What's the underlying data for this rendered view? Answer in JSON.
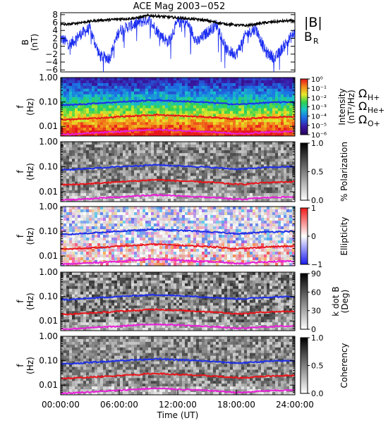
{
  "title": "ACE Mag 2003−052",
  "colors": {
    "total_field": "#000000",
    "radial_field": "#1a2cf0",
    "he_plus_line": "#e8161b",
    "h_plus_line": "#1f2fe8",
    "o_plus_line": "#e81fd8"
  },
  "time_axis": {
    "label": "Time (UT)",
    "ticks": [
      "00:00:00",
      "06:00:00",
      "12:00:00",
      "18:00:00",
      "24:00:00"
    ]
  },
  "freq_axis": {
    "label_top": "f",
    "label_bottom": "(Hz)",
    "ticks": [
      "1.00",
      "0.10",
      "0.01"
    ]
  },
  "legend": {
    "b_total": "|B|",
    "b_radial": "B",
    "b_radial_sub": "R",
    "omega": "Ω",
    "h_plus": "H+",
    "he_plus": "He+",
    "o_plus": "O+"
  },
  "panels": {
    "field": {
      "ylabel_top": "B",
      "ylabel_bottom": "(nT)",
      "yticks": [
        "8",
        "6",
        "4",
        "2",
        "0",
        "−2",
        "−4",
        "−6"
      ]
    },
    "intensity": {
      "cbar_label": "Intensity",
      "cbar_unit": "(nT²/Hz)",
      "cbar_ticks": [
        "10⁰",
        "10⁻¹",
        "10⁻²",
        "10⁻³",
        "10⁻⁴",
        "10⁻⁵",
        "10⁻⁶"
      ]
    },
    "polarization": {
      "cbar_label": "% Polarization",
      "cbar_ticks": [
        "1.0",
        "0.5",
        "0.0"
      ]
    },
    "ellipticity": {
      "cbar_label": "Ellipticity",
      "cbar_ticks": [
        "1",
        "0",
        "−1"
      ]
    },
    "kdotb": {
      "cbar_label": "k dot B",
      "cbar_unit": "(Deg)",
      "cbar_ticks": [
        "90",
        "60",
        "30",
        "0"
      ]
    },
    "coherency": {
      "cbar_label": "Coherency",
      "cbar_ticks": [
        "1.0",
        "0.5",
        "0.0"
      ]
    }
  },
  "chart_data": [
    {
      "type": "line",
      "panel": "field",
      "title": "ACE Mag 2003−052",
      "ylabel": "B (nT)",
      "xlabel": "Time (UT)",
      "xlim": [
        0,
        24
      ],
      "ylim": [
        -6.5,
        8.5
      ],
      "x": [
        0,
        1,
        2,
        3,
        4,
        5,
        6,
        7,
        8,
        9,
        10,
        11,
        12,
        13,
        14,
        15,
        16,
        17,
        18,
        19,
        20,
        21,
        22,
        23,
        24
      ],
      "series": [
        {
          "name": "|B|",
          "values": [
            5.5,
            5.6,
            6.0,
            6.3,
            6.6,
            6.7,
            6.9,
            7.0,
            7.2,
            7.8,
            7.6,
            7.4,
            7.2,
            7.0,
            6.8,
            6.5,
            6.0,
            5.6,
            5.4,
            5.2,
            5.6,
            6.0,
            6.2,
            6.4,
            6.5
          ]
        },
        {
          "name": "Bᵣ",
          "values": [
            2.0,
            0.5,
            3.0,
            4.5,
            -2.5,
            -3.0,
            4.0,
            5.0,
            6.0,
            6.8,
            3.5,
            1.0,
            6.2,
            5.8,
            1.0,
            3.5,
            5.5,
            -1.0,
            -2.0,
            3.0,
            4.5,
            -1.5,
            -3.0,
            0.5,
            3.5
          ]
        }
      ]
    },
    {
      "type": "heatmap",
      "panel": "intensity",
      "ylabel": "f (Hz)",
      "xlabel": "Time (UT)",
      "xlim": [
        0,
        24
      ],
      "ylim": [
        0.004,
        1.0
      ],
      "log_y": true,
      "colorbar": "Intensity (nT²/Hz)",
      "colorbar_range": [
        1e-06,
        1
      ]
    },
    {
      "type": "heatmap",
      "panel": "polarization",
      "ylabel": "f (Hz)",
      "xlim": [
        0,
        24
      ],
      "ylim": [
        0.004,
        1.0
      ],
      "log_y": true,
      "colorbar": "% Polarization",
      "colorbar_range": [
        0,
        1
      ]
    },
    {
      "type": "heatmap",
      "panel": "ellipticity",
      "ylabel": "f (Hz)",
      "xlim": [
        0,
        24
      ],
      "ylim": [
        0.004,
        1.0
      ],
      "log_y": true,
      "colorbar": "Ellipticity",
      "colorbar_range": [
        -1,
        1
      ]
    },
    {
      "type": "heatmap",
      "panel": "kdotb",
      "ylabel": "f (Hz)",
      "xlim": [
        0,
        24
      ],
      "ylim": [
        0.004,
        1.0
      ],
      "log_y": true,
      "colorbar": "k dot B (Deg)",
      "colorbar_range": [
        0,
        90
      ]
    },
    {
      "type": "heatmap",
      "panel": "coherency",
      "ylabel": "f (Hz)",
      "xlim": [
        0,
        24
      ],
      "ylim": [
        0.004,
        1.0
      ],
      "log_y": true,
      "colorbar": "Coherency",
      "colorbar_range": [
        0,
        1
      ]
    },
    {
      "type": "line",
      "panel": "gyrofrequencies",
      "x": [
        0,
        1,
        2,
        3,
        4,
        5,
        6,
        7,
        8,
        9,
        10,
        11,
        12,
        13,
        14,
        15,
        16,
        17,
        18,
        19,
        20,
        21,
        22,
        23,
        24
      ],
      "series": [
        {
          "name": "H+",
          "values": [
            0.075,
            0.075,
            0.08,
            0.085,
            0.09,
            0.095,
            0.1,
            0.105,
            0.11,
            0.115,
            0.118,
            0.112,
            0.108,
            0.105,
            0.1,
            0.095,
            0.09,
            0.085,
            0.08,
            0.082,
            0.088,
            0.093,
            0.096,
            0.098,
            0.1
          ]
        },
        {
          "name": "He+",
          "values": [
            0.019,
            0.019,
            0.02,
            0.021,
            0.022,
            0.023,
            0.025,
            0.026,
            0.027,
            0.029,
            0.03,
            0.028,
            0.027,
            0.026,
            0.025,
            0.024,
            0.023,
            0.021,
            0.02,
            0.02,
            0.022,
            0.023,
            0.024,
            0.0245,
            0.025
          ]
        },
        {
          "name": "O+",
          "values": [
            0.0047,
            0.0047,
            0.005,
            0.0052,
            0.0055,
            0.0058,
            0.006,
            0.0065,
            0.0068,
            0.0072,
            0.0073,
            0.007,
            0.0068,
            0.0065,
            0.0062,
            0.006,
            0.0057,
            0.0053,
            0.005,
            0.005,
            0.0055,
            0.0057,
            0.006,
            0.0061,
            0.0062
          ]
        }
      ]
    }
  ]
}
